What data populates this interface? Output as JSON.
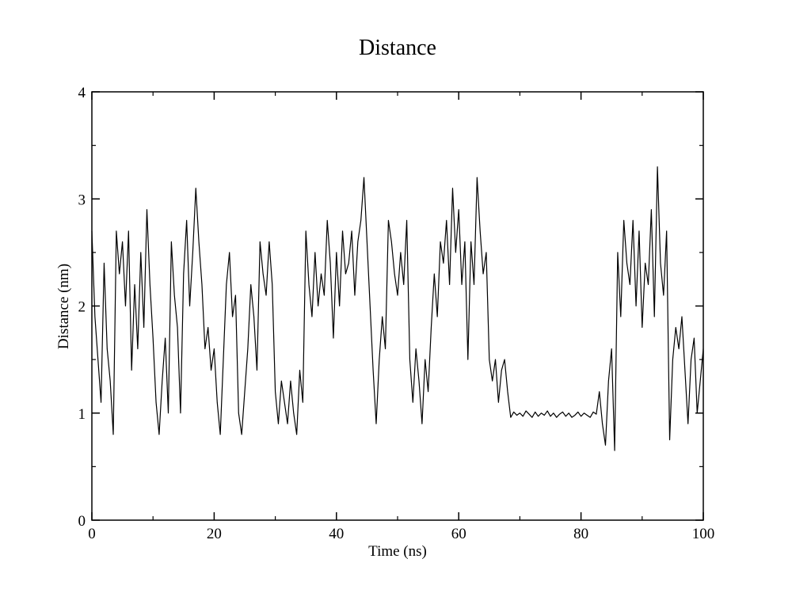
{
  "chart_data": {
    "type": "line",
    "title": "Distance",
    "xlabel": "Time (ns)",
    "ylabel": "Distance (nm)",
    "xlim": [
      0,
      100
    ],
    "ylim": [
      0,
      4
    ],
    "x_ticks": [
      "0",
      "20",
      "40",
      "60",
      "80",
      "100"
    ],
    "y_ticks": [
      "0",
      "1",
      "2",
      "3",
      "4"
    ],
    "grid": false,
    "legend": "none",
    "line_color": "#000000",
    "series": [
      {
        "x": [
          0,
          0.5,
          1,
          1.5,
          2,
          2.5,
          3,
          3.5,
          4,
          4.5,
          5,
          5.5,
          6,
          6.5,
          7,
          7.5,
          8,
          8.5,
          9,
          9.5,
          10,
          10.5,
          11,
          11.5,
          12,
          12.5,
          13,
          13.5,
          14,
          14.5,
          15,
          15.5,
          16,
          16.5,
          17,
          17.5,
          18,
          18.5,
          19,
          19.5,
          20,
          20.5,
          21,
          21.5,
          22,
          22.5,
          23,
          23.5,
          24,
          24.5,
          25,
          25.5,
          26,
          26.5,
          27,
          27.5,
          28,
          28.5,
          29,
          29.5,
          30,
          30.5,
          31,
          31.5,
          32,
          32.5,
          33,
          33.5,
          34,
          34.5,
          35,
          35.5,
          36,
          36.5,
          37,
          37.5,
          38,
          38.5,
          39,
          39.5,
          40,
          40.5,
          41,
          41.5,
          42,
          42.5,
          43,
          43.5,
          44,
          44.5,
          45,
          45.5,
          46,
          46.5,
          47,
          47.5,
          48,
          48.5,
          49,
          49.5,
          50,
          50.5,
          51,
          51.5,
          52,
          52.5,
          53,
          53.5,
          54,
          54.5,
          55,
          55.5,
          56,
          56.5,
          57,
          57.5,
          58,
          58.5,
          59,
          59.5,
          60,
          60.5,
          61,
          61.5,
          62,
          62.5,
          63,
          63.5,
          64,
          64.5,
          65,
          65.5,
          66,
          66.5,
          67,
          67.5,
          68,
          68.5,
          69,
          69.5,
          70,
          70.5,
          71,
          71.5,
          72,
          72.5,
          73,
          73.5,
          74,
          74.5,
          75,
          75.5,
          76,
          76.5,
          77,
          77.5,
          78,
          78.5,
          79,
          79.5,
          80,
          80.5,
          81,
          81.5,
          82,
          82.5,
          83,
          83.5,
          84,
          84.5,
          85,
          85.5,
          86,
          86.5,
          87,
          87.5,
          88,
          88.5,
          89,
          89.5,
          90,
          90.5,
          91,
          91.5,
          92,
          92.5,
          93,
          93.5,
          94,
          94.5,
          95,
          95.5,
          96,
          96.5,
          97,
          97.5,
          98,
          98.5,
          99,
          99.5,
          100
        ],
        "y": [
          2.7,
          1.9,
          1.5,
          1.1,
          2.4,
          1.6,
          1.3,
          0.8,
          2.7,
          2.3,
          2.6,
          2.0,
          2.7,
          1.4,
          2.2,
          1.6,
          2.5,
          1.8,
          2.9,
          2.2,
          1.7,
          1.1,
          0.8,
          1.3,
          1.7,
          1.0,
          2.6,
          2.1,
          1.8,
          1.0,
          2.3,
          2.8,
          2.0,
          2.5,
          3.1,
          2.6,
          2.2,
          1.6,
          1.8,
          1.4,
          1.6,
          1.1,
          0.8,
          1.5,
          2.2,
          2.5,
          1.9,
          2.1,
          1.0,
          0.8,
          1.2,
          1.6,
          2.2,
          1.9,
          1.4,
          2.6,
          2.3,
          2.1,
          2.6,
          2.2,
          1.2,
          0.9,
          1.3,
          1.1,
          0.9,
          1.3,
          1.0,
          0.8,
          1.4,
          1.1,
          2.7,
          2.2,
          1.9,
          2.5,
          2.0,
          2.3,
          2.1,
          2.8,
          2.4,
          1.7,
          2.5,
          2.0,
          2.7,
          2.3,
          2.4,
          2.7,
          2.1,
          2.6,
          2.8,
          3.2,
          2.6,
          2.0,
          1.4,
          0.9,
          1.5,
          1.9,
          1.6,
          2.8,
          2.6,
          2.3,
          2.1,
          2.5,
          2.2,
          2.8,
          1.5,
          1.1,
          1.6,
          1.3,
          0.9,
          1.5,
          1.2,
          1.8,
          2.3,
          1.9,
          2.6,
          2.4,
          2.8,
          2.2,
          3.1,
          2.5,
          2.9,
          2.2,
          2.6,
          1.5,
          2.6,
          2.2,
          3.2,
          2.7,
          2.3,
          2.5,
          1.5,
          1.3,
          1.5,
          1.1,
          1.4,
          1.5,
          1.2,
          0.96,
          1.01,
          0.98,
          1.0,
          0.97,
          1.02,
          0.99,
          0.96,
          1.01,
          0.97,
          1.0,
          0.98,
          1.02,
          0.97,
          1.0,
          0.96,
          0.99,
          1.01,
          0.97,
          1.0,
          0.96,
          0.98,
          1.01,
          0.97,
          1.0,
          0.98,
          0.96,
          1.01,
          0.99,
          1.2,
          0.9,
          0.7,
          1.3,
          1.6,
          0.65,
          2.5,
          1.9,
          2.8,
          2.4,
          2.2,
          2.8,
          2.0,
          2.7,
          1.8,
          2.4,
          2.2,
          2.9,
          1.9,
          3.3,
          2.4,
          2.1,
          2.7,
          0.75,
          1.5,
          1.8,
          1.6,
          1.9,
          1.4,
          0.9,
          1.5,
          1.7,
          1.0,
          1.3,
          1.6
        ]
      }
    ]
  }
}
